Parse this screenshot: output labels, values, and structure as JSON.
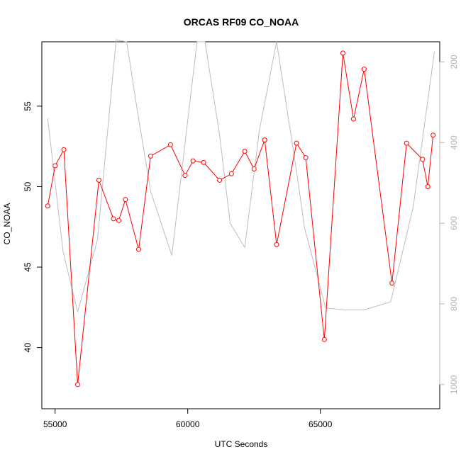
{
  "chart_data": {
    "type": "line",
    "title": "ORCAS RF09 CO_NOAA",
    "xlabel": "UTC Seconds",
    "ylabel": "CO_NOAA",
    "xlim": [
      54500,
      69500
    ],
    "ylim": [
      36.2,
      59.0
    ],
    "y2lim": [
      1060,
      150
    ],
    "x_ticks": [
      55000,
      60000,
      65000
    ],
    "x_tick_labels": [
      "55000",
      "60000",
      "65000"
    ],
    "y_ticks": [
      40,
      45,
      50,
      55
    ],
    "y_tick_labels": [
      "40",
      "45",
      "50",
      "55"
    ],
    "y2_ticks": [
      200,
      400,
      600,
      800,
      1000
    ],
    "y2_tick_labels": [
      "200",
      "400",
      "600",
      "800",
      "1000"
    ],
    "colors": {
      "co_series": "#ff0000",
      "pressure_series": "#bebebe",
      "right_axis": "#b3b3b3"
    },
    "series": [
      {
        "axis": "left",
        "style": "line-with-open-circles",
        "x": [
          54720,
          55000,
          55330,
          55850,
          56650,
          57200,
          57400,
          57650,
          58150,
          58600,
          59350,
          59900,
          60200,
          60600,
          61200,
          61650,
          62150,
          62500,
          62900,
          63350,
          64100,
          64450,
          65150,
          65850,
          66250,
          66650,
          67700,
          68250,
          68850,
          69050,
          69250
        ],
        "y": [
          48.8,
          51.3,
          52.3,
          37.7,
          50.4,
          48.0,
          47.9,
          49.2,
          46.1,
          51.9,
          52.6,
          50.7,
          51.6,
          51.5,
          50.4,
          50.8,
          52.2,
          51.1,
          52.9,
          46.4,
          52.7,
          51.8,
          40.5,
          58.3,
          54.2,
          57.3,
          44.0,
          52.7,
          51.7,
          50.0,
          53.2
        ]
      },
      {
        "axis": "right",
        "style": "line",
        "x": [
          54720,
          55300,
          55850,
          56600,
          57300,
          57700,
          58050,
          58600,
          59400,
          60350,
          60650,
          61200,
          61600,
          62150,
          62700,
          63350,
          64100,
          64400,
          65200,
          65900,
          66650,
          67650,
          68500,
          69300
        ],
        "y": [
          340,
          670,
          820,
          640,
          145,
          150,
          300,
          520,
          680,
          150,
          150,
          380,
          600,
          660,
          370,
          150,
          470,
          610,
          810,
          815,
          815,
          795,
          560,
          175
        ]
      }
    ]
  }
}
